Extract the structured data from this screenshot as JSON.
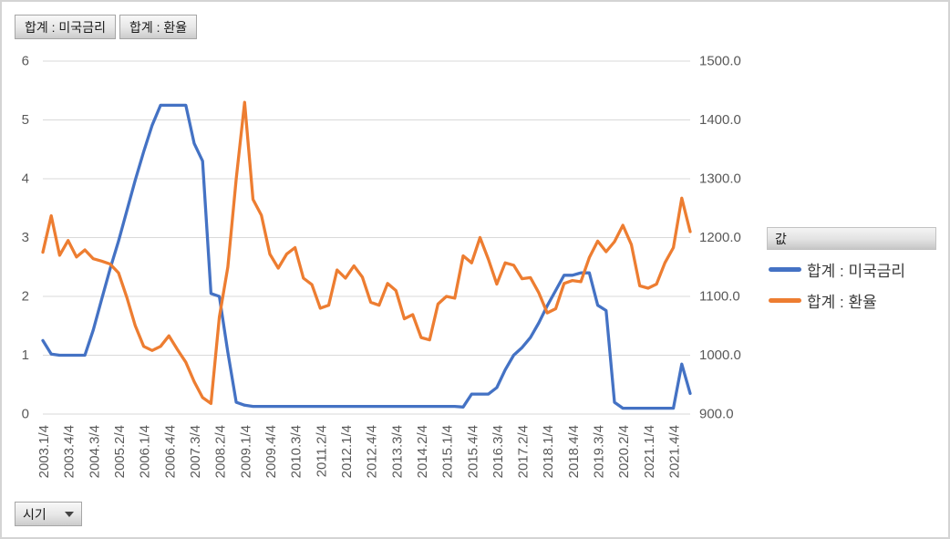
{
  "field_buttons": [
    {
      "label": "합계 : 미국금리"
    },
    {
      "label": "합계 : 환율"
    }
  ],
  "axis_field_button": {
    "label": "시기"
  },
  "legend": {
    "header": "값",
    "items": [
      {
        "label": "합계 : 미국금리",
        "color": "#4472C4"
      },
      {
        "label": "합계 : 환율",
        "color": "#ED7D31"
      }
    ]
  },
  "colors": {
    "series_rate": "#4472C4",
    "series_fx": "#ED7D31",
    "gridline": "#D9D9D9",
    "axis_text": "#595959",
    "frame_border": "#D4D4D4"
  },
  "chart_data": {
    "type": "line",
    "grid": "horizontal-only",
    "legend_position": "right",
    "n_points": 78,
    "points_per_tick": 3,
    "x_tick_labels": [
      "2003.1/4",
      "2003.4/4",
      "2004.3/4",
      "2005.2/4",
      "2006.1/4",
      "2006.4/4",
      "2007.3/4",
      "2008.2/4",
      "2009.1/4",
      "2009.4/4",
      "2010.3/4",
      "2011.2/4",
      "2012.1/4",
      "2012.4/4",
      "2013.3/4",
      "2014.2/4",
      "2015.1/4",
      "2015.4/4",
      "2016.3/4",
      "2017.2/4",
      "2018.1/4",
      "2018.4/4",
      "2019.3/4",
      "2020.2/4",
      "2021.1/4",
      "2021.4/4"
    ],
    "left_axis": {
      "min": 0,
      "max": 6,
      "step": 1,
      "tick_labels": [
        "0",
        "1",
        "2",
        "3",
        "4",
        "5",
        "6"
      ]
    },
    "right_axis": {
      "min": 900,
      "max": 1500,
      "step": 100,
      "tick_labels": [
        "900.0",
        "1000.0",
        "1100.0",
        "1200.0",
        "1300.0",
        "1400.0",
        "1500.0"
      ]
    },
    "series": [
      {
        "name": "합계 : 미국금리",
        "axis": "left",
        "color": "#4472C4",
        "values": [
          1.25,
          1.02,
          1.0,
          1.0,
          1.0,
          1.0,
          1.43,
          1.95,
          2.47,
          2.94,
          3.46,
          3.98,
          4.46,
          4.91,
          5.25,
          5.25,
          5.25,
          5.25,
          4.6,
          4.3,
          2.05,
          2.0,
          1.05,
          0.2,
          0.15,
          0.13,
          0.13,
          0.13,
          0.13,
          0.13,
          0.13,
          0.13,
          0.13,
          0.13,
          0.13,
          0.13,
          0.13,
          0.13,
          0.13,
          0.13,
          0.13,
          0.13,
          0.13,
          0.13,
          0.13,
          0.13,
          0.13,
          0.13,
          0.13,
          0.13,
          0.12,
          0.34,
          0.34,
          0.34,
          0.45,
          0.75,
          1.0,
          1.13,
          1.3,
          1.55,
          1.84,
          2.1,
          2.36,
          2.36,
          2.4,
          2.4,
          1.85,
          1.76,
          0.2,
          0.1,
          0.1,
          0.1,
          0.1,
          0.1,
          0.1,
          0.1,
          0.85,
          0.35
        ]
      },
      {
        "name": "합계 : 환율",
        "axis": "right",
        "color": "#ED7D31",
        "values": [
          1175,
          1237,
          1170,
          1195,
          1167,
          1179,
          1164,
          1160,
          1155,
          1140,
          1098,
          1050,
          1015,
          1008,
          1015,
          1033,
          1010,
          988,
          955,
          928,
          918,
          1065,
          1150,
          1300,
          1430,
          1265,
          1238,
          1172,
          1148,
          1172,
          1183,
          1131,
          1120,
          1080,
          1085,
          1145,
          1131,
          1152,
          1133,
          1090,
          1085,
          1122,
          1110,
          1062,
          1069,
          1030,
          1026,
          1087,
          1100,
          1097,
          1169,
          1157,
          1200,
          1163,
          1121,
          1157,
          1153,
          1130,
          1132,
          1106,
          1072,
          1079,
          1122,
          1127,
          1125,
          1166,
          1194,
          1176,
          1193,
          1221,
          1188,
          1118,
          1114,
          1121,
          1157,
          1183,
          1267,
          1210
        ]
      }
    ]
  }
}
